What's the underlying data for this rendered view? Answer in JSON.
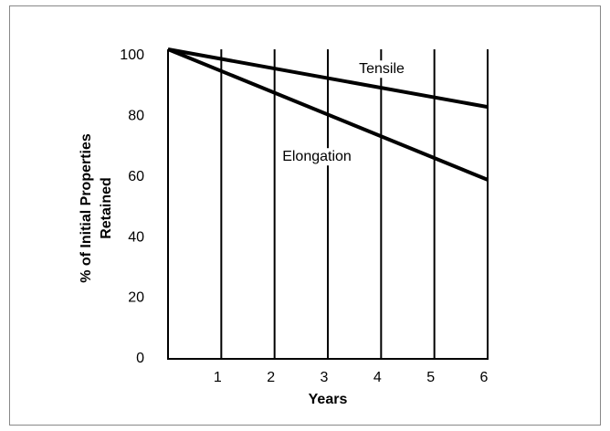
{
  "chart_data": {
    "type": "line",
    "xlabel": "Years",
    "ylabel": [
      "% of Initial Properties",
      "Retained"
    ],
    "x": [
      0,
      6
    ],
    "series": [
      {
        "name": "Tensile",
        "color": "#000000",
        "values": [
          102,
          83
        ]
      },
      {
        "name": "Elongation",
        "color": "#000000",
        "values": [
          102,
          59
        ]
      }
    ],
    "xlim": [
      0,
      6
    ],
    "xticks": [
      1,
      2,
      3,
      4,
      5,
      6
    ],
    "ylim": [
      0,
      102
    ],
    "yticks": [
      0,
      20,
      40,
      60,
      80,
      100
    ],
    "grid": "x"
  }
}
